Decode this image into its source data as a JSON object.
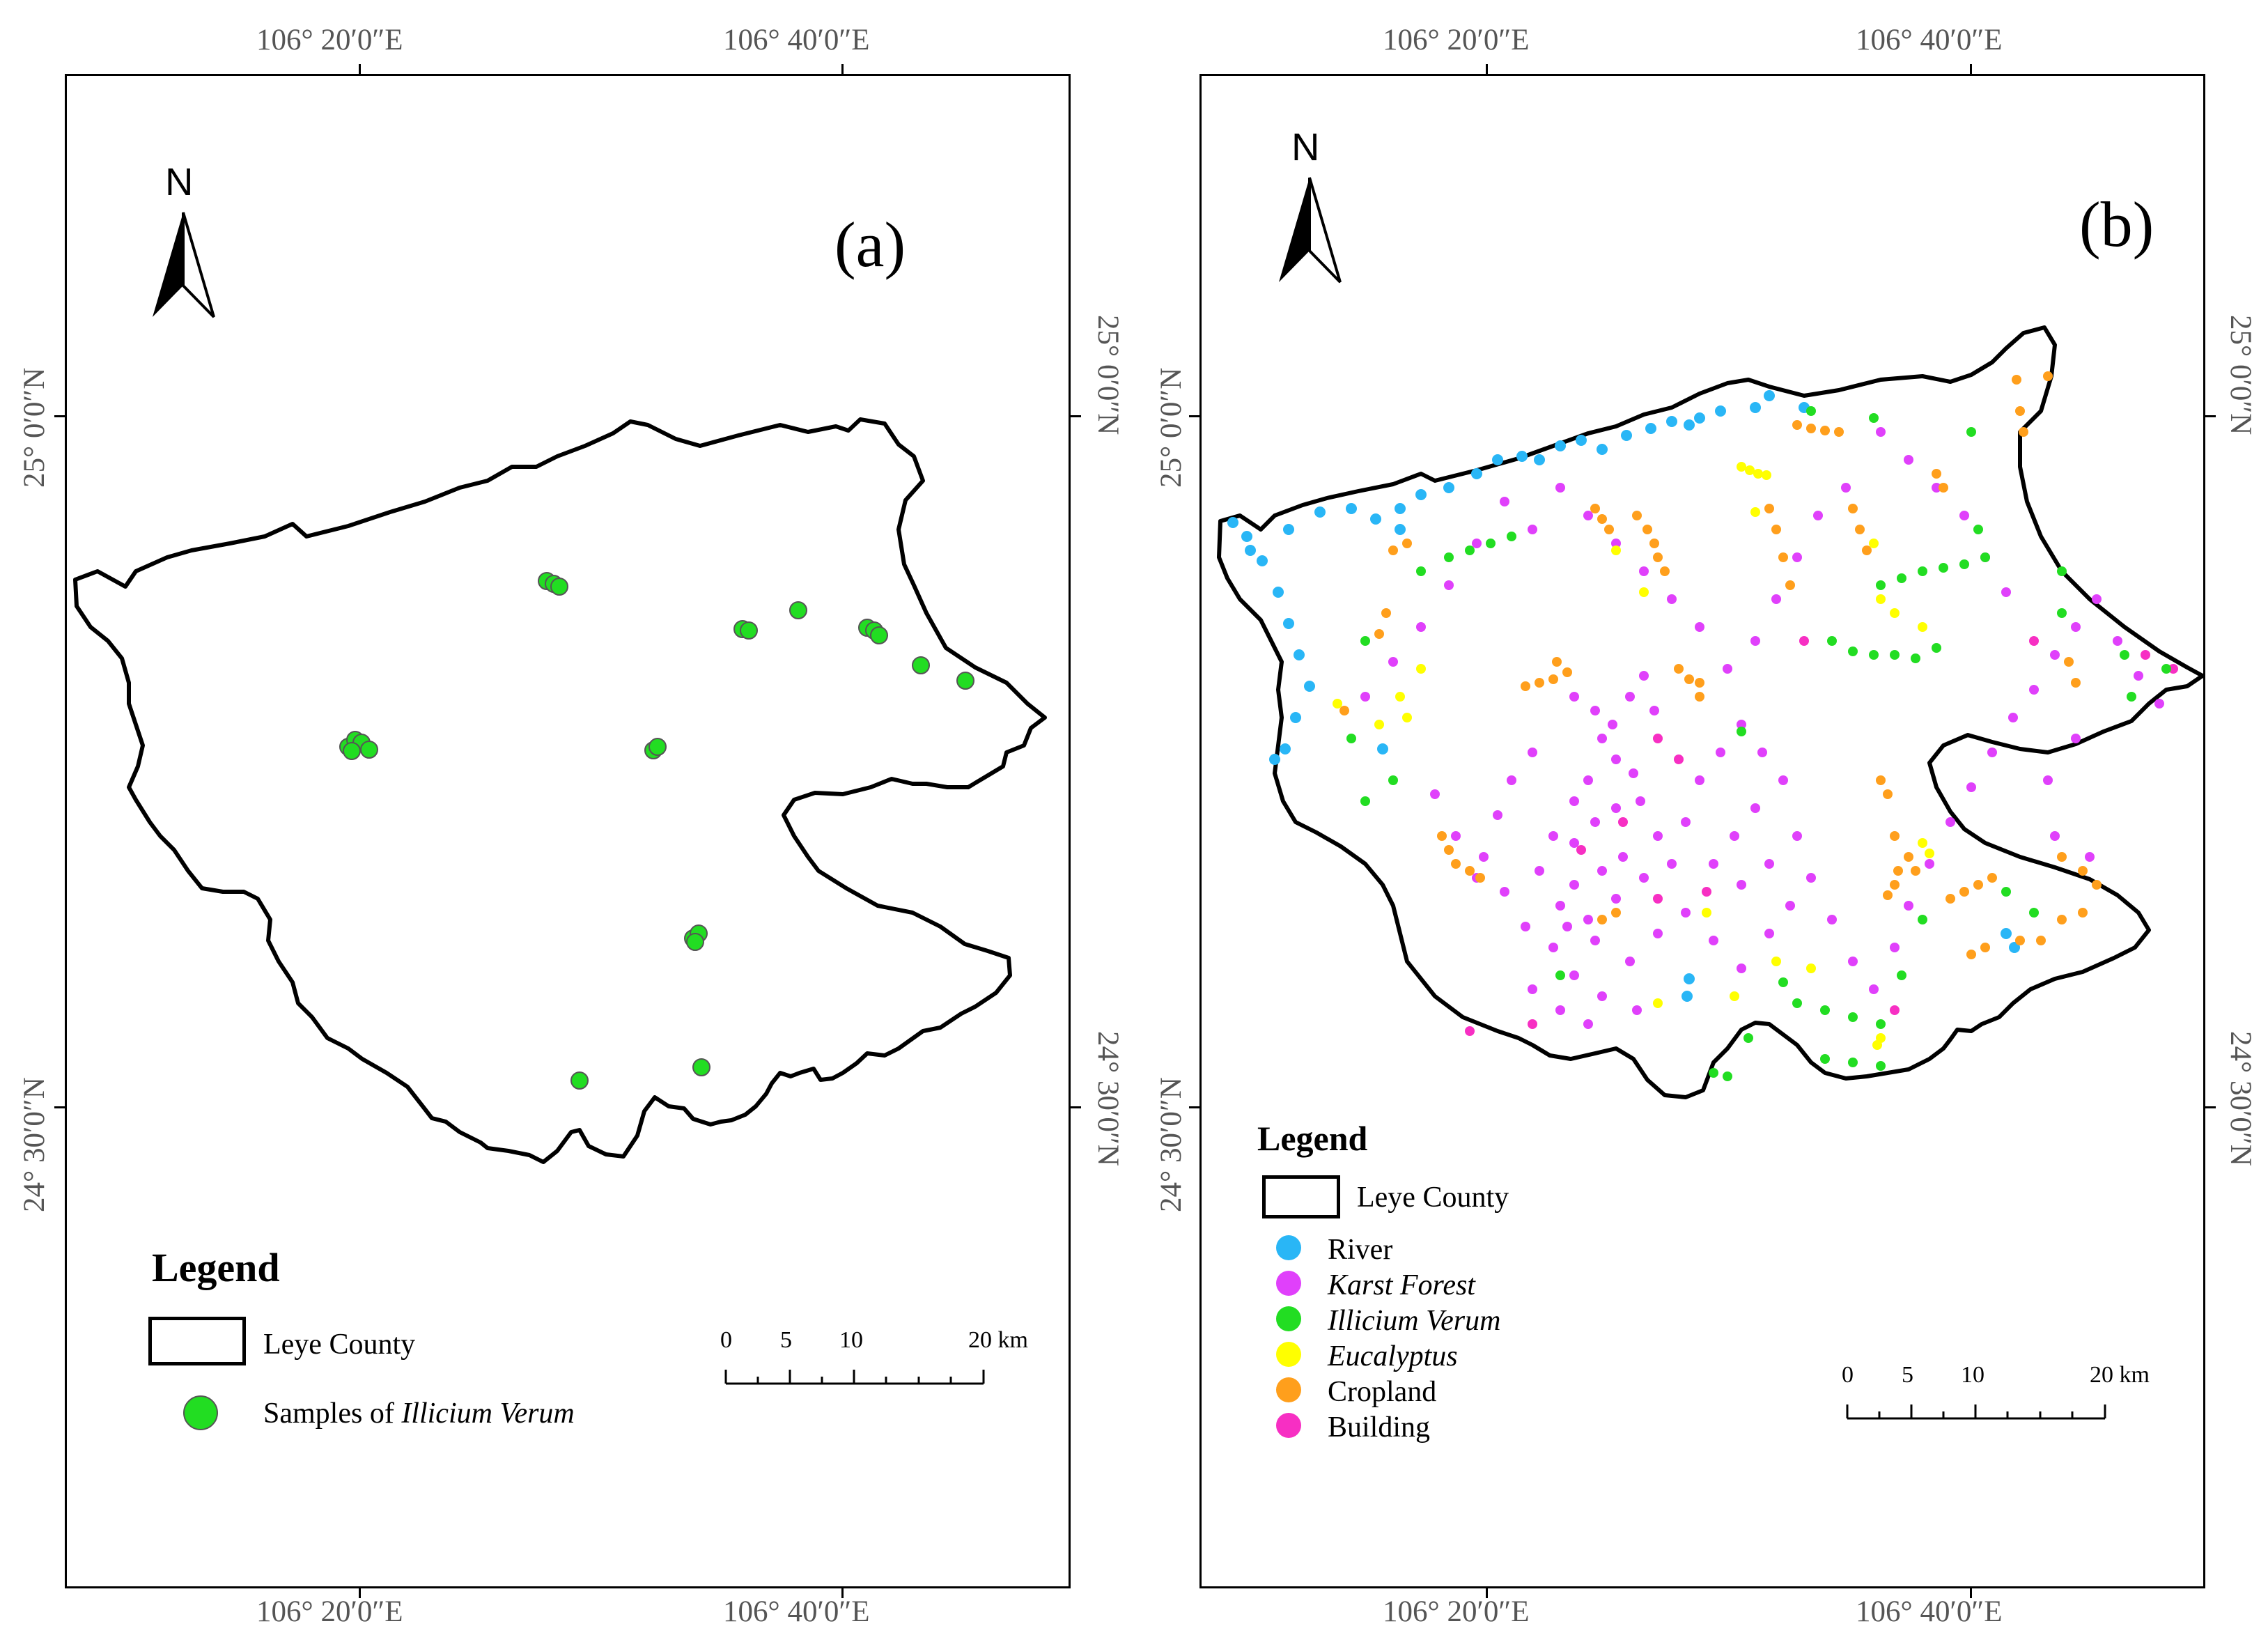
{
  "panel_a": {
    "label": "(a)",
    "north": "N",
    "lon_labels": [
      "106° 20′0″E",
      "106° 40′0″E"
    ],
    "lat_labels": [
      "25° 0′0″N",
      "24° 30′0″N"
    ],
    "legend": {
      "title": "Legend",
      "items": [
        {
          "label": "Leye County"
        },
        {
          "label": "Samples of ",
          "italic_part": "Illicium Verum",
          "color": "#22dd22"
        }
      ]
    },
    "scale": {
      "ticks": [
        "0",
        "5",
        "10",
        "20 km"
      ]
    }
  },
  "panel_b": {
    "label": "(b)",
    "north": "N",
    "lon_labels": [
      "106° 20′0″E",
      "106° 40′0″E"
    ],
    "lat_labels": [
      "25° 0′0″N",
      "24° 30′0″N"
    ],
    "legend": {
      "title": "Legend",
      "items": [
        {
          "label": "Leye County"
        },
        {
          "label": "River",
          "color": "#29b6f6",
          "italic": false
        },
        {
          "label": "Karst Forest",
          "color": "#e040fb",
          "italic": true
        },
        {
          "label": "Illicium Verum",
          "color": "#22dd22",
          "italic": true
        },
        {
          "label": "Eucalyptus",
          "color": "#ffff00",
          "italic": true
        },
        {
          "label": "Cropland",
          "color": "#ff9f1c",
          "italic": false
        },
        {
          "label": "Building",
          "color": "#f72fc3",
          "italic": false
        }
      ]
    },
    "scale": {
      "ticks": [
        "0",
        "5",
        "10",
        "20 km"
      ]
    }
  }
}
